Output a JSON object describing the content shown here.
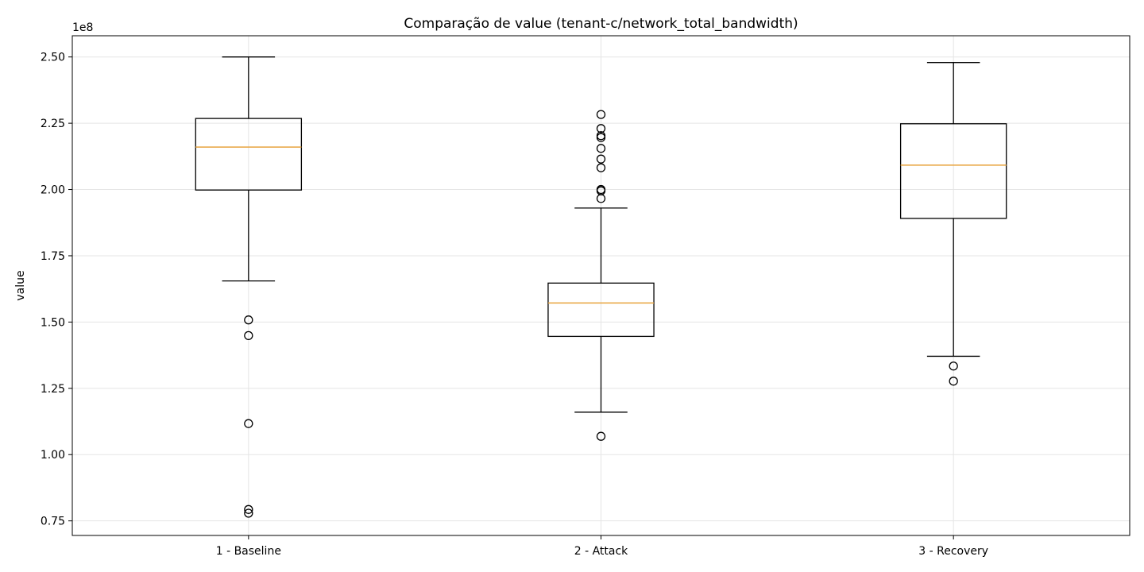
{
  "chart_data": {
    "type": "box",
    "title": "Comparação de value (tenant-c/network_total_bandwidth)",
    "xlabel": "",
    "ylabel": "value",
    "offset_label": "1e8",
    "ylim": [
      0.695,
      2.58
    ],
    "yticks": [
      0.75,
      1.0,
      1.25,
      1.5,
      1.75,
      2.0,
      2.25,
      2.5
    ],
    "ytick_labels": [
      "0.75",
      "1.00",
      "1.25",
      "1.50",
      "1.75",
      "2.00",
      "2.25",
      "2.50"
    ],
    "categories": [
      "1 - Baseline",
      "2 - Attack",
      "3 - Recovery"
    ],
    "boxes": [
      {
        "whisker_low": 1.655,
        "q1": 1.998,
        "median": 2.16,
        "q3": 2.268,
        "whisker_high": 2.5,
        "outliers": [
          1.508,
          1.449,
          1.117,
          0.793,
          0.779
        ]
      },
      {
        "whisker_low": 1.16,
        "q1": 1.446,
        "median": 1.572,
        "q3": 1.647,
        "whisker_high": 1.93,
        "outliers": [
          2.283,
          2.23,
          2.203,
          2.196,
          2.155,
          2.115,
          2.082,
          2.0,
          1.995,
          1.966,
          1.069
        ]
      },
      {
        "whisker_low": 1.371,
        "q1": 1.891,
        "median": 2.092,
        "q3": 2.248,
        "whisker_high": 2.479,
        "outliers": [
          1.334,
          1.277
        ]
      }
    ],
    "grid": true,
    "colors": {
      "box": "#000000",
      "median": "#e8a33d",
      "grid": "#e5e5e5",
      "outlier": "#000000"
    }
  }
}
